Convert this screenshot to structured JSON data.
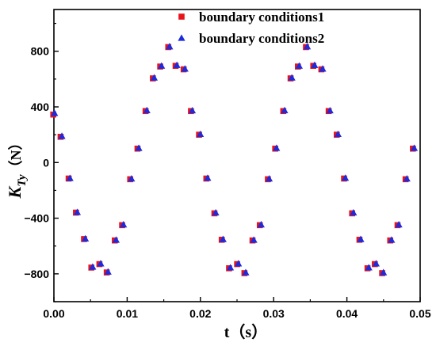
{
  "chart_data": {
    "type": "scatter",
    "title": "",
    "xlabel": "t（s）",
    "ylabel": {
      "main": "K",
      "sub": "Ty",
      "unit": "（N）"
    },
    "xlim": [
      0.0,
      0.05
    ],
    "ylim": [
      -1000,
      1100
    ],
    "xticks": [
      0.0,
      0.01,
      0.02,
      0.03,
      0.04,
      0.05
    ],
    "xtick_labels": [
      "0.00",
      "0.01",
      "0.02",
      "0.03",
      "0.04",
      "0.05"
    ],
    "yticks": [
      -800,
      -400,
      0,
      400,
      800
    ],
    "ytick_labels": [
      "−800",
      "−400",
      "0",
      "400",
      "800"
    ],
    "grid": false,
    "legend_position": "top-right",
    "x": [
      0.0,
      0.001,
      0.0021,
      0.0031,
      0.0042,
      0.0052,
      0.0063,
      0.0073,
      0.0084,
      0.0094,
      0.0105,
      0.0115,
      0.0126,
      0.0136,
      0.0146,
      0.0157,
      0.0167,
      0.0178,
      0.0188,
      0.0199,
      0.0209,
      0.022,
      0.023,
      0.024,
      0.0251,
      0.0261,
      0.0272,
      0.0282,
      0.0293,
      0.0303,
      0.0314,
      0.0324,
      0.0334,
      0.0345,
      0.0355,
      0.0366,
      0.0376,
      0.0387,
      0.0397,
      0.0408,
      0.0418,
      0.0429,
      0.0439,
      0.0449,
      0.046,
      0.047,
      0.0481,
      0.0491
    ],
    "series": [
      {
        "name": "boundary conditions1",
        "marker": "square",
        "color": "#e8141c",
        "values": [
          345,
          185,
          -115,
          -360,
          -550,
          -755,
          -730,
          -790,
          -560,
          -450,
          -120,
          100,
          370,
          605,
          690,
          830,
          695,
          670,
          370,
          200,
          -115,
          -365,
          -555,
          -760,
          -730,
          -795,
          -560,
          -450,
          -120,
          100,
          370,
          605,
          690,
          830,
          695,
          670,
          370,
          200,
          -115,
          -365,
          -555,
          -760,
          -730,
          -795,
          -560,
          -450,
          -120,
          100
        ]
      },
      {
        "name": "boundary conditions2",
        "marker": "triangle",
        "color": "#1c2bdc",
        "values": [
          355,
          190,
          -112,
          -357,
          -547,
          -750,
          -726,
          -785,
          -556,
          -446,
          -116,
          104,
          375,
          610,
          695,
          834,
          700,
          674,
          374,
          204,
          -111,
          -360,
          -551,
          -755,
          -726,
          -790,
          -556,
          -446,
          -116,
          104,
          375,
          610,
          695,
          834,
          700,
          674,
          374,
          204,
          -111,
          -360,
          -551,
          -755,
          -726,
          -790,
          -556,
          -446,
          -116,
          104
        ]
      }
    ]
  }
}
